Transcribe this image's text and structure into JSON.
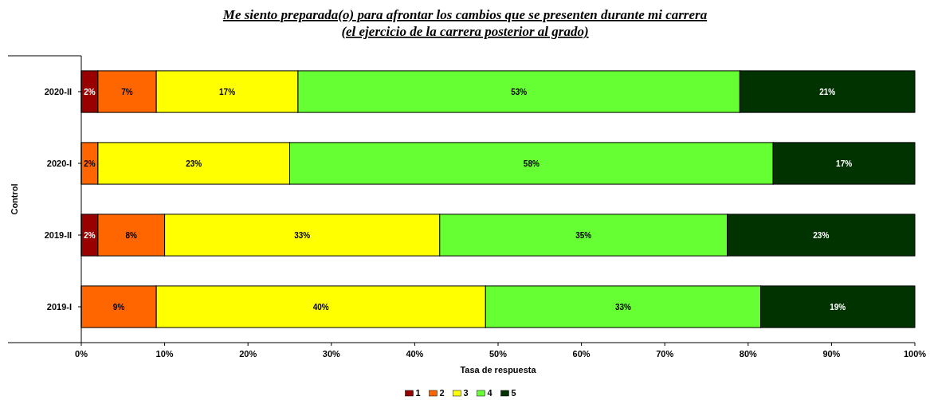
{
  "chart_data": {
    "type": "bar",
    "orientation": "horizontal",
    "stacked": true,
    "title": "Me siento preparada(o) para afrontar los cambios que se presenten durante mi carrera",
    "subtitle": "(el ejercicio de la carrera posterior al grado)",
    "xlabel": "Tasa de respuesta",
    "ylabel": "Control",
    "categories": [
      "2020-II",
      "2020-I",
      "2019-II",
      "2019-I"
    ],
    "xlim": [
      0,
      100
    ],
    "xticks": [
      {
        "value": 0,
        "label": "0%"
      },
      {
        "value": 10,
        "label": "10%"
      },
      {
        "value": 20,
        "label": "20%"
      },
      {
        "value": 30,
        "label": "30%"
      },
      {
        "value": 40,
        "label": "40%"
      },
      {
        "value": 50,
        "label": "50%"
      },
      {
        "value": 60,
        "label": "60%"
      },
      {
        "value": 70,
        "label": "70%"
      },
      {
        "value": 80,
        "label": "80%"
      },
      {
        "value": 90,
        "label": "90%"
      },
      {
        "value": 100,
        "label": "100%"
      }
    ],
    "series": [
      {
        "name": "1",
        "color": "#990000",
        "values": [
          2,
          0,
          2,
          0
        ],
        "value_labels": [
          "2%",
          null,
          "2%",
          null
        ]
      },
      {
        "name": "2",
        "color": "#ff6600",
        "values": [
          7,
          2,
          8,
          9
        ],
        "value_labels": [
          "7%",
          "2%",
          "8%",
          "9%"
        ]
      },
      {
        "name": "3",
        "color": "#ffff00",
        "values": [
          17,
          23,
          33,
          39.5
        ],
        "value_labels": [
          "17%",
          "23%",
          "33%",
          "40%"
        ]
      },
      {
        "name": "4",
        "color": "#66ff33",
        "values": [
          53,
          58,
          34.5,
          33
        ],
        "value_labels": [
          "53%",
          "58%",
          "35%",
          "33%"
        ]
      },
      {
        "name": "5",
        "color": "#003300",
        "values": [
          21,
          17,
          22.5,
          18.5
        ],
        "value_labels": [
          "21%",
          "17%",
          "23%",
          "19%"
        ]
      }
    ],
    "grid": false,
    "legend": "bottom"
  }
}
